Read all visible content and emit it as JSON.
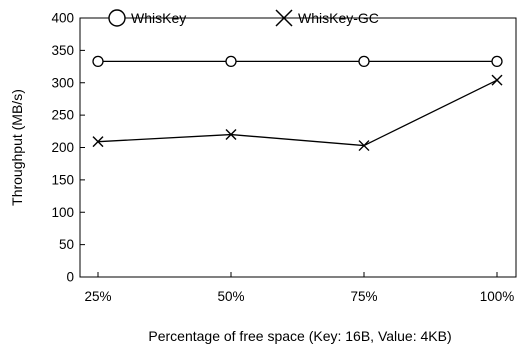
{
  "chart_data": {
    "type": "line",
    "categories": [
      "25%",
      "50%",
      "75%",
      "100%"
    ],
    "series": [
      {
        "name": "WhisKey",
        "values": [
          333,
          333,
          333,
          333
        ],
        "marker": "circle"
      },
      {
        "name": "WhisKey-GC",
        "values": [
          209,
          220,
          203,
          304
        ],
        "marker": "x"
      }
    ],
    "xlabel": "Percentage of free space (Key: 16B, Value: 4KB)",
    "ylabel": "Throughput (MB/s)",
    "ylim": [
      0,
      400
    ],
    "yticks": [
      0,
      50,
      100,
      150,
      200,
      250,
      300,
      350,
      400
    ],
    "grid": false,
    "legend_position": "top-left",
    "line_color": "#000000"
  }
}
